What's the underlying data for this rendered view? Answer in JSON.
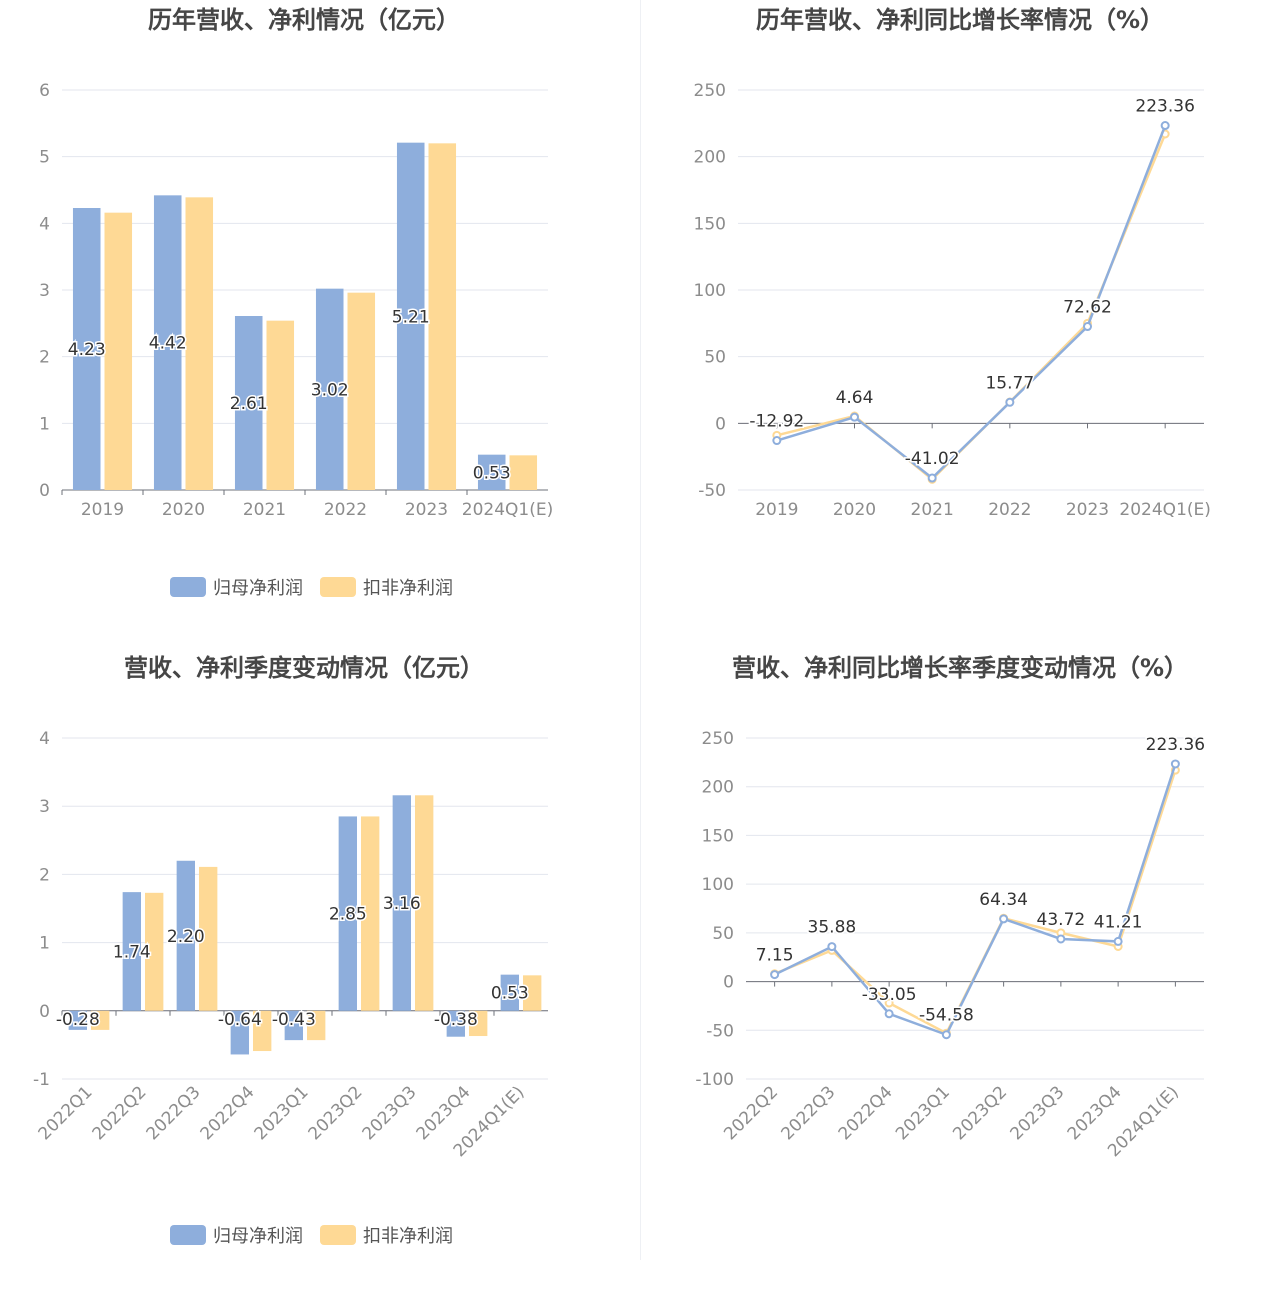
{
  "chart_data": [
    {
      "type": "bar",
      "title": "历年营收、净利情况（亿元）",
      "categories": [
        "2019",
        "2020",
        "2021",
        "2022",
        "2023",
        "2024Q1(E)"
      ],
      "series": [
        {
          "name": "归母净利润",
          "values": [
            4.23,
            4.42,
            2.61,
            3.02,
            5.21,
            0.53
          ],
          "color": "#8eaedc"
        },
        {
          "name": "扣非净利润",
          "values": [
            4.16,
            4.39,
            2.54,
            2.96,
            5.2,
            0.52
          ],
          "color": "#fed995"
        }
      ],
      "data_labels": [
        "4.23",
        "4.42",
        "2.61",
        "3.02",
        "5.21",
        "0.53"
      ],
      "ylim": [
        0,
        6
      ],
      "yticks": [
        "0",
        "1",
        "2",
        "3",
        "4",
        "5",
        "6"
      ],
      "grid": true,
      "legend": "bottom"
    },
    {
      "type": "line",
      "title": "历年营收、净利同比增长率情况（%）",
      "categories": [
        "2019",
        "2020",
        "2021",
        "2022",
        "2023",
        "2024Q1(E)"
      ],
      "series": [
        {
          "name": "归母净利润同比增长率",
          "values": [
            -12.92,
            4.64,
            -41.02,
            15.77,
            72.62,
            223.36
          ],
          "color": "#8eaedc"
        },
        {
          "name": "扣非净利润同比增长率",
          "values": [
            -9.0,
            5.5,
            -42.0,
            16.0,
            75.0,
            217.0
          ],
          "color": "#fed995"
        }
      ],
      "data_labels": [
        "-12.92",
        "4.64",
        "-41.02",
        "15.77",
        "72.62",
        "223.36"
      ],
      "ylim": [
        -50,
        250
      ],
      "yticks": [
        "-50",
        "0",
        "50",
        "100",
        "150",
        "200",
        "250"
      ],
      "grid": true,
      "legend": "bottom"
    },
    {
      "type": "bar",
      "title": "营收、净利季度变动情况（亿元）",
      "categories": [
        "2022Q1",
        "2022Q2",
        "2022Q3",
        "2022Q4",
        "2023Q1",
        "2023Q2",
        "2023Q3",
        "2023Q4",
        "2024Q1(E)"
      ],
      "series": [
        {
          "name": "归母净利润",
          "values": [
            -0.28,
            1.74,
            2.2,
            -0.64,
            -0.43,
            2.85,
            3.16,
            -0.38,
            0.53
          ],
          "color": "#8eaedc"
        },
        {
          "name": "扣非净利润",
          "values": [
            -0.28,
            1.73,
            2.11,
            -0.59,
            -0.43,
            2.85,
            3.16,
            -0.37,
            0.52
          ],
          "color": "#fed995"
        }
      ],
      "data_labels": [
        "-0.28",
        "1.74",
        "2.20",
        "-0.64",
        "-0.43",
        "2.85",
        "3.16",
        "-0.38",
        "0.53"
      ],
      "ylim": [
        -1,
        4
      ],
      "yticks": [
        "-1",
        "0",
        "1",
        "2",
        "3",
        "4"
      ],
      "grid": true,
      "legend": "bottom"
    },
    {
      "type": "line",
      "title": "营收、净利同比增长率季度变动情况（%）",
      "categories": [
        "2022Q2",
        "2022Q3",
        "2022Q4",
        "2023Q1",
        "2023Q2",
        "2023Q3",
        "2023Q4",
        "2024Q1(E)"
      ],
      "series": [
        {
          "name": "归母净利润同比增长率",
          "values": [
            7.15,
            35.88,
            -33.05,
            -54.58,
            64.34,
            43.72,
            41.21,
            223.36
          ],
          "color": "#8eaedc"
        },
        {
          "name": "扣非净利润同比增长率",
          "values": [
            8.0,
            32.0,
            -22.0,
            -53.0,
            65.0,
            50.0,
            36.0,
            217.0
          ],
          "color": "#fed995"
        }
      ],
      "data_labels": [
        "7.15",
        "35.88",
        "-33.05",
        "-54.58",
        "64.34",
        "43.72",
        "41.21",
        "223.36"
      ],
      "ylim": [
        -100,
        250
      ],
      "yticks": [
        "-100",
        "-50",
        "0",
        "50",
        "100",
        "150",
        "200",
        "250"
      ],
      "grid": true,
      "legend": "bottom"
    }
  ]
}
